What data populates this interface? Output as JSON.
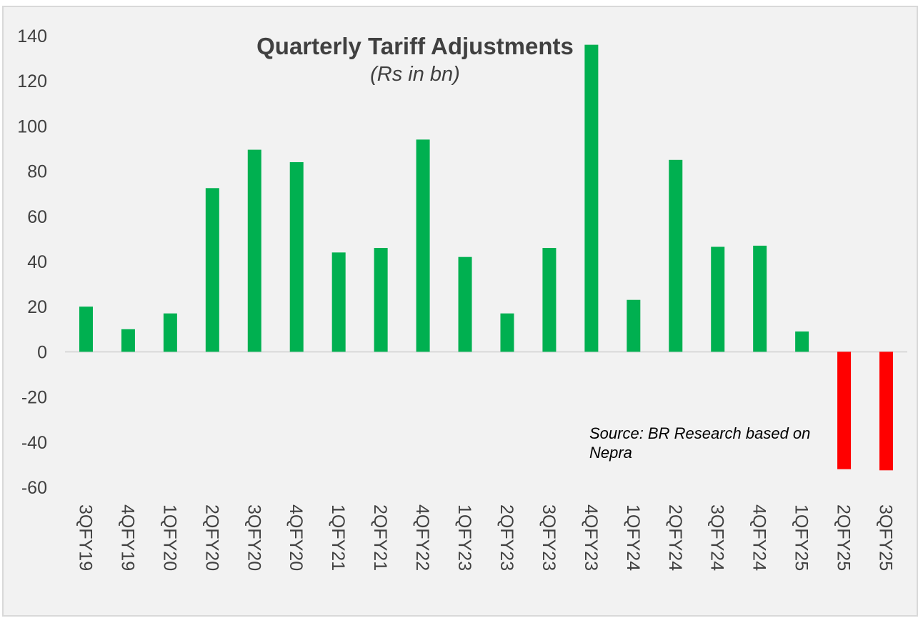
{
  "chart_data": {
    "type": "bar",
    "title": "Quarterly Tariff Adjustments",
    "subtitle": "(Rs in bn)",
    "xlabel": "",
    "ylabel": "",
    "ylim": [
      -60,
      140
    ],
    "yticks": [
      140,
      120,
      100,
      80,
      60,
      40,
      20,
      0,
      -20,
      -40,
      -60
    ],
    "grid": false,
    "legend": "none",
    "categories": [
      "3QFY19",
      "4QFY19",
      "1QFY20",
      "2QFY20",
      "3QFY20",
      "4QFY20",
      "1QFY21",
      "2QFY21",
      "4QFY22",
      "1QFY23",
      "2QFY23",
      "3QFY23",
      "4QFY23",
      "1QFY24",
      "2QFY24",
      "3QFY24",
      "4QFY24",
      "1QFY25",
      "2QFY25",
      "3QFY25"
    ],
    "values": [
      20,
      10,
      17,
      72.5,
      89.5,
      84,
      44,
      46,
      94,
      42,
      17,
      46,
      136,
      23,
      85,
      46.5,
      47,
      9,
      -52,
      -52.5
    ],
    "colors": {
      "positive": "#00b050",
      "negative": "#ff0000",
      "axis": "#d9d9d9"
    },
    "annotations": [
      {
        "text_lines": [
          "Source: BR Research based on",
          "Nepra"
        ],
        "placement": "lower-right"
      }
    ]
  }
}
